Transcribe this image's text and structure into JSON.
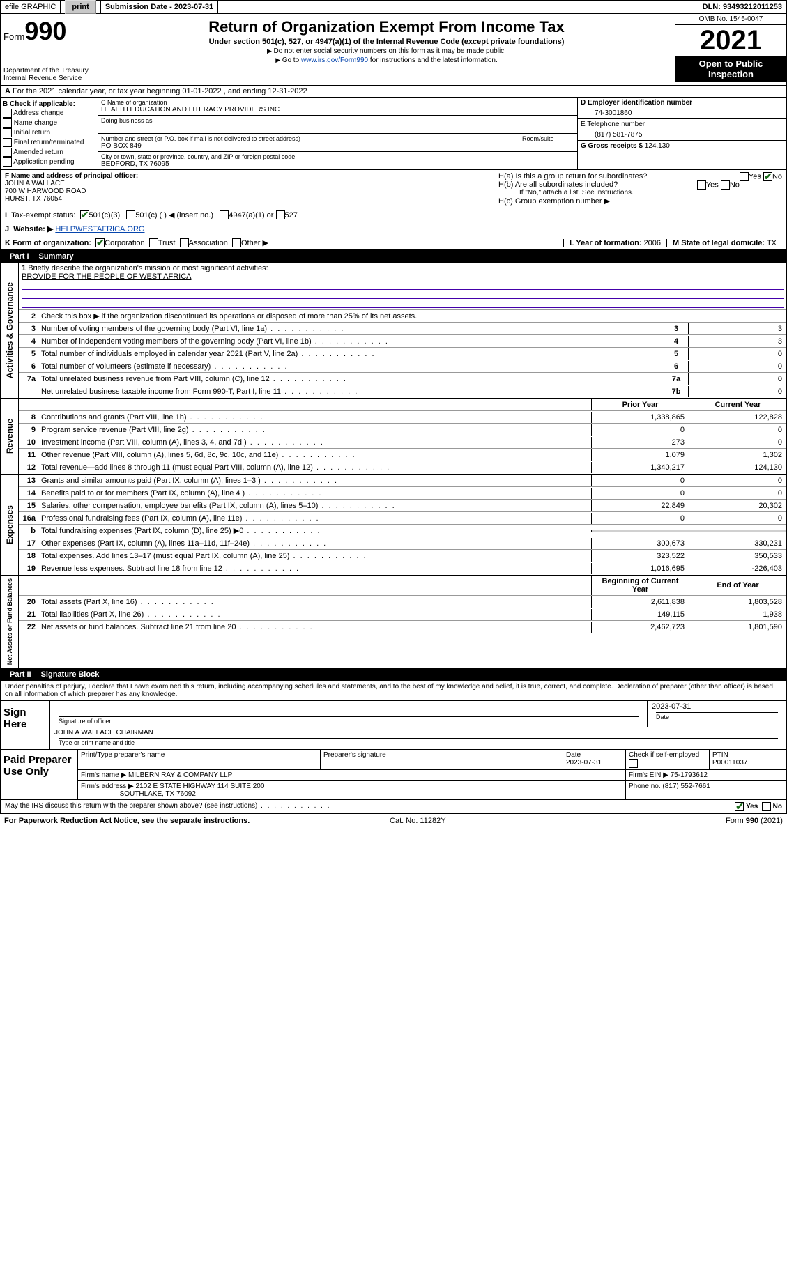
{
  "topbar": {
    "efile_label": "efile GRAPHIC",
    "print_btn": "print",
    "submission_label": "Submission Date - 2023-07-31",
    "dln": "DLN: 93493212011253"
  },
  "header": {
    "form_word": "Form",
    "form_num": "990",
    "dept": "Department of the Treasury",
    "irs": "Internal Revenue Service",
    "title": "Return of Organization Exempt From Income Tax",
    "subtitle": "Under section 501(c), 527, or 4947(a)(1) of the Internal Revenue Code (except private foundations)",
    "note1": "Do not enter social security numbers on this form as it may be made public.",
    "note2_pre": "Go to ",
    "note2_link": "www.irs.gov/Form990",
    "note2_post": " for instructions and the latest information.",
    "omb": "OMB No. 1545-0047",
    "year": "2021",
    "open_pub": "Open to Public Inspection"
  },
  "row_a": "For the 2021 calendar year, or tax year beginning 01-01-2022   , and ending 12-31-2022",
  "box_b": {
    "label": "B Check if applicable:",
    "items": [
      "Address change",
      "Name change",
      "Initial return",
      "Final return/terminated",
      "Amended return",
      "Application pending"
    ]
  },
  "box_c": {
    "name_label": "C Name of organization",
    "name": "HEALTH EDUCATION AND LITERACY PROVIDERS INC",
    "dba_label": "Doing business as",
    "addr_label": "Number and street (or P.O. box if mail is not delivered to street address)",
    "room_label": "Room/suite",
    "addr": "PO BOX 849",
    "city_label": "City or town, state or province, country, and ZIP or foreign postal code",
    "city": "BEDFORD, TX  76095"
  },
  "box_d": {
    "label": "D Employer identification number",
    "val": "74-3001860"
  },
  "box_e": {
    "label": "E Telephone number",
    "val": "(817) 581-7875"
  },
  "box_g": {
    "label": "G Gross receipts $",
    "val": "124,130"
  },
  "box_f": {
    "label": "F Name and address of principal officer:",
    "line1": "JOHN A WALLACE",
    "line2": "700 W HARWOOD ROAD",
    "line3": "HURST, TX  76054"
  },
  "box_h": {
    "ha": "H(a)  Is this a group return for subordinates?",
    "hb": "H(b)  Are all subordinates included?",
    "hb_note": "If \"No,\" attach a list. See instructions.",
    "hc": "H(c)  Group exemption number ▶",
    "yes": "Yes",
    "no": "No"
  },
  "row_i": {
    "label": "Tax-exempt status:",
    "c3": "501(c)(3)",
    "c": "501(c) (   ) ◀ (insert no.)",
    "a1": "4947(a)(1) or",
    "s527": "527"
  },
  "row_j": {
    "label": "Website: ▶",
    "val": "HELPWESTAFRICA.ORG"
  },
  "row_k": {
    "label": "K Form of organization:",
    "corp": "Corporation",
    "trust": "Trust",
    "assoc": "Association",
    "other": "Other ▶"
  },
  "row_l": {
    "label": "L Year of formation:",
    "val": "2006"
  },
  "row_m": {
    "label": "M State of legal domicile:",
    "val": "TX"
  },
  "part1": {
    "num": "Part I",
    "title": "Summary"
  },
  "mission": {
    "q": "Briefly describe the organization's mission or most significant activities:",
    "a": "PROVIDE FOR THE PEOPLE OF WEST AFRICA"
  },
  "line2": "Check this box ▶       if the organization discontinued its operations or disposed of more than 25% of its net assets.",
  "gov_rows": [
    {
      "n": "3",
      "t": "Number of voting members of the governing body (Part VI, line 1a)",
      "k": "3",
      "v": "3"
    },
    {
      "n": "4",
      "t": "Number of independent voting members of the governing body (Part VI, line 1b)",
      "k": "4",
      "v": "3"
    },
    {
      "n": "5",
      "t": "Total number of individuals employed in calendar year 2021 (Part V, line 2a)",
      "k": "5",
      "v": "0"
    },
    {
      "n": "6",
      "t": "Total number of volunteers (estimate if necessary)",
      "k": "6",
      "v": "0"
    },
    {
      "n": "7a",
      "t": "Total unrelated business revenue from Part VIII, column (C), line 12",
      "k": "7a",
      "v": "0"
    },
    {
      "n": "",
      "t": "Net unrelated business taxable income from Form 990-T, Part I, line 11",
      "k": "7b",
      "v": "0"
    }
  ],
  "col_hdrs": {
    "prior": "Prior Year",
    "current": "Current Year",
    "boc": "Beginning of Current Year",
    "eoy": "End of Year"
  },
  "revenue": [
    {
      "n": "8",
      "t": "Contributions and grants (Part VIII, line 1h)",
      "p": "1,338,865",
      "c": "122,828"
    },
    {
      "n": "9",
      "t": "Program service revenue (Part VIII, line 2g)",
      "p": "0",
      "c": "0"
    },
    {
      "n": "10",
      "t": "Investment income (Part VIII, column (A), lines 3, 4, and 7d )",
      "p": "273",
      "c": "0"
    },
    {
      "n": "11",
      "t": "Other revenue (Part VIII, column (A), lines 5, 6d, 8c, 9c, 10c, and 11e)",
      "p": "1,079",
      "c": "1,302"
    },
    {
      "n": "12",
      "t": "Total revenue—add lines 8 through 11 (must equal Part VIII, column (A), line 12)",
      "p": "1,340,217",
      "c": "124,130"
    }
  ],
  "expenses": [
    {
      "n": "13",
      "t": "Grants and similar amounts paid (Part IX, column (A), lines 1–3 )",
      "p": "0",
      "c": "0"
    },
    {
      "n": "14",
      "t": "Benefits paid to or for members (Part IX, column (A), line 4 )",
      "p": "0",
      "c": "0"
    },
    {
      "n": "15",
      "t": "Salaries, other compensation, employee benefits (Part IX, column (A), lines 5–10)",
      "p": "22,849",
      "c": "20,302"
    },
    {
      "n": "16a",
      "t": "Professional fundraising fees (Part IX, column (A), line 11e)",
      "p": "0",
      "c": "0"
    },
    {
      "n": "b",
      "t": "Total fundraising expenses (Part IX, column (D), line 25) ▶0",
      "p": "",
      "c": "",
      "grey": true
    },
    {
      "n": "17",
      "t": "Other expenses (Part IX, column (A), lines 11a–11d, 11f–24e)",
      "p": "300,673",
      "c": "330,231"
    },
    {
      "n": "18",
      "t": "Total expenses. Add lines 13–17 (must equal Part IX, column (A), line 25)",
      "p": "323,522",
      "c": "350,533"
    },
    {
      "n": "19",
      "t": "Revenue less expenses. Subtract line 18 from line 12",
      "p": "1,016,695",
      "c": "-226,403"
    }
  ],
  "net": [
    {
      "n": "20",
      "t": "Total assets (Part X, line 16)",
      "p": "2,611,838",
      "c": "1,803,528"
    },
    {
      "n": "21",
      "t": "Total liabilities (Part X, line 26)",
      "p": "149,115",
      "c": "1,938"
    },
    {
      "n": "22",
      "t": "Net assets or fund balances. Subtract line 21 from line 20",
      "p": "2,462,723",
      "c": "1,801,590"
    }
  ],
  "sides": {
    "gov": "Activities & Governance",
    "rev": "Revenue",
    "exp": "Expenses",
    "net": "Net Assets or Fund Balances"
  },
  "part2": {
    "num": "Part II",
    "title": "Signature Block"
  },
  "sig": {
    "decl": "Under penalties of perjury, I declare that I have examined this return, including accompanying schedules and statements, and to the best of my knowledge and belief, it is true, correct, and complete. Declaration of preparer (other than officer) is based on all information of which preparer has any knowledge.",
    "sign_here": "Sign Here",
    "officer_sig": "Signature of officer",
    "date_lbl": "Date",
    "date_val": "2023-07-31",
    "officer_name": "JOHN A WALLACE  CHAIRMAN",
    "officer_name_lbl": "Type or print name and title"
  },
  "prep": {
    "title": "Paid Preparer Use Only",
    "hdr": [
      "Print/Type preparer's name",
      "Preparer's signature",
      "Date",
      "",
      "PTIN"
    ],
    "date": "2023-07-31",
    "check_lbl": "Check        if self-employed",
    "ptin": "P00011037",
    "firm_lbl": "Firm's name   ▶",
    "firm": "MILBERN RAY & COMPANY LLP",
    "ein_lbl": "Firm's EIN ▶",
    "ein": "75-1793612",
    "addr_lbl": "Firm's address ▶",
    "addr1": "2102 E STATE HIGHWAY 114 SUITE 200",
    "addr2": "SOUTHLAKE, TX  76092",
    "phone_lbl": "Phone no.",
    "phone": "(817) 552-7661"
  },
  "discuss": {
    "q": "May the IRS discuss this return with the preparer shown above? (see instructions)",
    "yes": "Yes",
    "no": "No"
  },
  "footer": {
    "left": "For Paperwork Reduction Act Notice, see the separate instructions.",
    "mid": "Cat. No. 11282Y",
    "right": "Form 990 (2021)"
  }
}
